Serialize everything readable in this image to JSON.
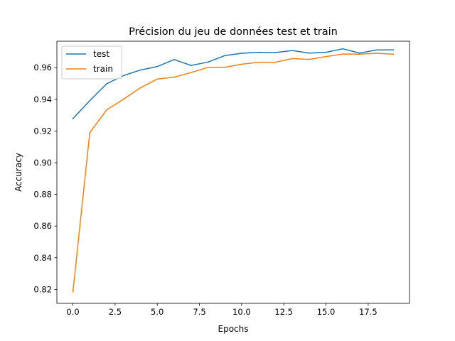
{
  "chart_data": {
    "type": "line",
    "title": "Précision du jeu de données test et train",
    "xlabel": "Epochs",
    "ylabel": "Accuracy",
    "xlim": [
      -0.95,
      19.95
    ],
    "ylim": [
      0.8112,
      0.9767
    ],
    "xticks": [
      0.0,
      2.5,
      5.0,
      7.5,
      10.0,
      12.5,
      15.0,
      17.5
    ],
    "xtick_labels": [
      "0.0",
      "2.5",
      "5.0",
      "7.5",
      "10.0",
      "12.5",
      "15.0",
      "17.5"
    ],
    "yticks": [
      0.82,
      0.84,
      0.86,
      0.88,
      0.9,
      0.92,
      0.94,
      0.96
    ],
    "ytick_labels": [
      "0.82",
      "0.84",
      "0.86",
      "0.88",
      "0.90",
      "0.92",
      "0.94",
      "0.96"
    ],
    "grid": false,
    "legend_position": "top-left",
    "x": [
      0,
      1,
      2,
      3,
      4,
      5,
      6,
      7,
      8,
      9,
      10,
      11,
      12,
      13,
      14,
      15,
      16,
      17,
      18,
      19
    ],
    "series": [
      {
        "name": "test",
        "color": "#1f77b4",
        "values": [
          0.9278,
          0.9392,
          0.9498,
          0.955,
          0.9585,
          0.9607,
          0.9651,
          0.9614,
          0.9635,
          0.9676,
          0.9691,
          0.9697,
          0.9695,
          0.9708,
          0.9692,
          0.9697,
          0.9719,
          0.9692,
          0.9712,
          0.9712
        ]
      },
      {
        "name": "train",
        "color": "#ff7f0e",
        "values": [
          0.8185,
          0.919,
          0.9334,
          0.9401,
          0.9473,
          0.9528,
          0.954,
          0.9569,
          0.9602,
          0.9602,
          0.9622,
          0.9634,
          0.9634,
          0.9657,
          0.9652,
          0.967,
          0.9686,
          0.9685,
          0.9691,
          0.9685
        ]
      }
    ]
  }
}
